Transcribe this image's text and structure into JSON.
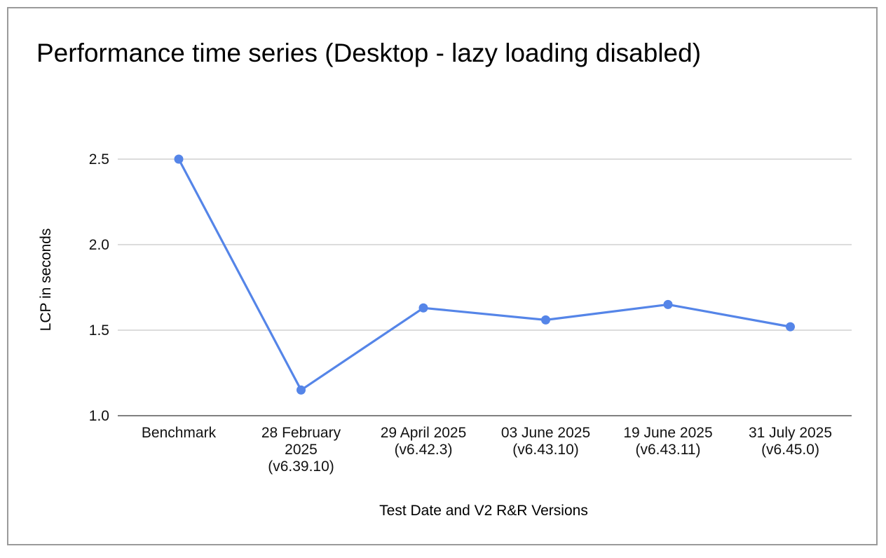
{
  "chart_data": {
    "type": "line",
    "title": "Performance time series (Desktop - lazy loading disabled)",
    "xlabel": "Test Date and V2 R&R Versions",
    "ylabel": "LCP in seconds",
    "categories": [
      [
        "Benchmark"
      ],
      [
        "28 February",
        "2025",
        "(v6.39.10)"
      ],
      [
        "29 April 2025",
        "(v6.42.3)"
      ],
      [
        "03 June 2025",
        "(v6.43.10)"
      ],
      [
        "19 June 2025",
        "(v6.43.11)"
      ],
      [
        "31 July 2025",
        "(v6.45.0)"
      ]
    ],
    "series": [
      {
        "values": [
          2.5,
          1.15,
          1.63,
          1.56,
          1.65,
          1.52
        ],
        "color": "#5585e8"
      }
    ],
    "ylim": [
      1.0,
      2.5
    ],
    "yticks": [
      "1.0",
      "1.5",
      "2.0",
      "2.5"
    ],
    "ytick_values": [
      1.0,
      1.5,
      2.0,
      2.5
    ],
    "grid": true,
    "legend": "none"
  }
}
